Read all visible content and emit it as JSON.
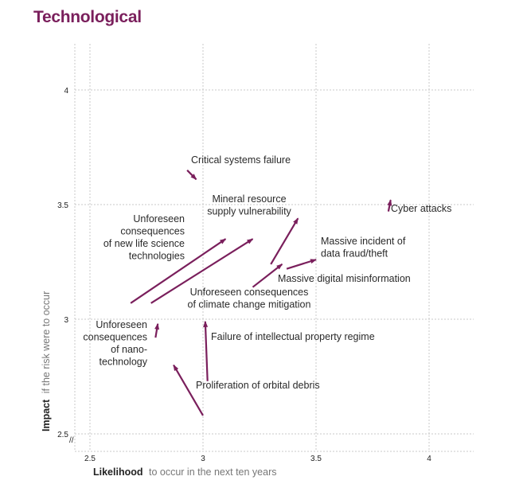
{
  "chart_data": {
    "type": "scatter",
    "title": "Technological",
    "xlabel_bold": "Likelihood",
    "xlabel_rest": "to occur in the next ten years",
    "ylabel_bold": "Impact",
    "ylabel_rest": "if the risk were to occur",
    "xlim": [
      2.5,
      4
    ],
    "ylim": [
      2.5,
      4
    ],
    "xticks": [
      "2.5",
      "3",
      "3.5",
      "4"
    ],
    "yticks": [
      "2.5",
      "3",
      "3.5",
      "4"
    ],
    "grid": true,
    "axis_break_marker": "//",
    "color": "#7a1f5c",
    "items": [
      {
        "label": [
          "Critical systems failure"
        ],
        "from": [
          2.93,
          3.65
        ],
        "to": [
          2.97,
          3.61
        ]
      },
      {
        "label": [
          "Mineral resource",
          "supply vulnerability"
        ],
        "from": [
          3.3,
          3.24
        ],
        "to": [
          3.42,
          3.44
        ]
      },
      {
        "label": [
          "Cyber attacks"
        ],
        "from": [
          3.82,
          3.47
        ],
        "to": [
          3.83,
          3.52
        ]
      },
      {
        "label": [
          "Unforeseen",
          "consequences",
          "of new life science",
          "technologies"
        ],
        "from": [
          2.68,
          3.07
        ],
        "to": [
          3.1,
          3.35
        ]
      },
      {
        "label": [
          "Massive incident of",
          "data fraud/theft"
        ],
        "from": [
          3.37,
          3.22
        ],
        "to": [
          3.5,
          3.26
        ]
      },
      {
        "label": [
          "Unforeseen consequences",
          "of climate change mitigation"
        ],
        "from": [
          2.77,
          3.07
        ],
        "to": [
          3.22,
          3.35
        ]
      },
      {
        "label": [
          "Massive digital misinformation"
        ],
        "from": [
          3.22,
          3.14
        ],
        "to": [
          3.35,
          3.24
        ]
      },
      {
        "label": [
          "Unforeseen",
          "consequences",
          "of nano-",
          "technology"
        ],
        "from": [
          2.79,
          2.92
        ],
        "to": [
          2.8,
          2.98
        ]
      },
      {
        "label": [
          "Failure of intellectual property regime"
        ],
        "from": [
          3.02,
          2.73
        ],
        "to": [
          3.01,
          2.99
        ]
      },
      {
        "label": [
          "Proliferation of orbital debris"
        ],
        "from": [
          3.0,
          2.58
        ],
        "to": [
          2.87,
          2.8
        ]
      }
    ]
  }
}
